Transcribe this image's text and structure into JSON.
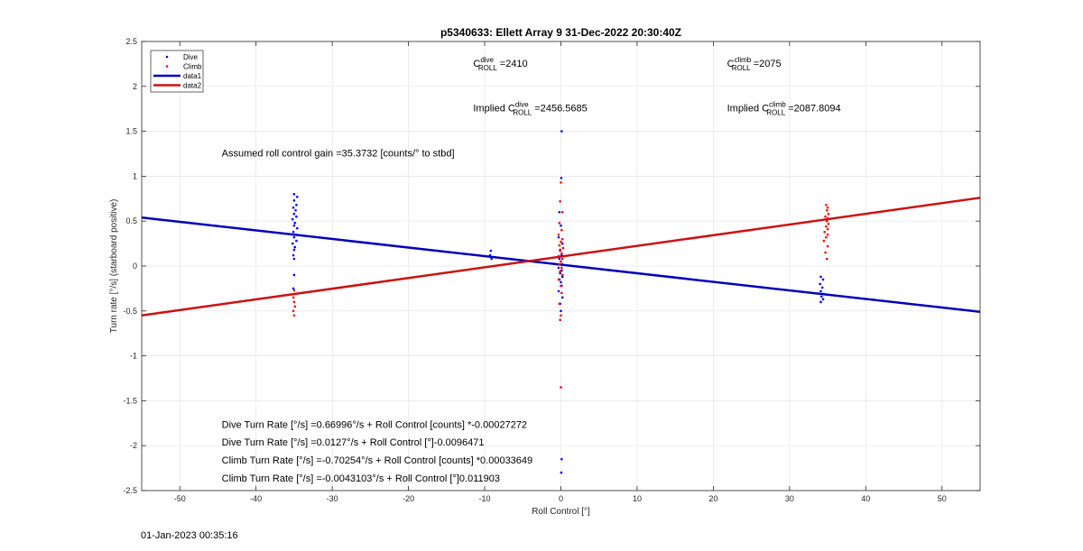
{
  "chart_data": {
    "type": "scatter",
    "title": "p5340633: Ellett Array 9 31-Dec-2022 20:30:40Z",
    "xlabel": "Roll Control [°]",
    "ylabel": "Turn rate [°/s] (starboard positive)",
    "xlim": [
      -55,
      55
    ],
    "ylim": [
      -2.5,
      2.5
    ],
    "xticks": [
      -50,
      -40,
      -30,
      -20,
      -10,
      0,
      10,
      20,
      30,
      40,
      50
    ],
    "yticks": [
      -2.5,
      -2,
      -1.5,
      -1,
      -0.5,
      0,
      0.5,
      1,
      1.5,
      2,
      2.5
    ],
    "grid": true,
    "legend_location": "top-left",
    "legend": [
      "Dive",
      "Climb",
      "data1",
      "data2"
    ],
    "colors": {
      "dive": "#0000ff",
      "climb": "#ff0000",
      "data1": "#0000bb",
      "data2": "#cc1111"
    },
    "series": [
      {
        "name": "Dive",
        "kind": "scatter",
        "points": [
          [
            -35,
            0.8
          ],
          [
            -34.6,
            0.77
          ],
          [
            -35,
            0.73
          ],
          [
            -34.7,
            0.68
          ],
          [
            -35.1,
            0.65
          ],
          [
            -34.8,
            0.62
          ],
          [
            -35,
            0.58
          ],
          [
            -34.7,
            0.55
          ],
          [
            -35.2,
            0.52
          ],
          [
            -34.9,
            0.48
          ],
          [
            -35,
            0.45
          ],
          [
            -34.6,
            0.42
          ],
          [
            -35.1,
            0.38
          ],
          [
            -34.8,
            0.35
          ],
          [
            -35,
            0.32
          ],
          [
            -34.7,
            0.28
          ],
          [
            -35.2,
            0.25
          ],
          [
            -34.9,
            0.21
          ],
          [
            -35,
            0.18
          ],
          [
            -35.1,
            0.12
          ],
          [
            -35,
            0.08
          ],
          [
            -35,
            -0.1
          ],
          [
            -35.1,
            -0.25
          ],
          [
            -9.2,
            0.17
          ],
          [
            -9.3,
            0.12
          ],
          [
            -9.1,
            0.08
          ],
          [
            0.1,
            1.5
          ],
          [
            0.05,
            0.98
          ],
          [
            -0.2,
            0.6
          ],
          [
            0,
            0.45
          ],
          [
            -0.3,
            0.32
          ],
          [
            0.2,
            0.25
          ],
          [
            -0.1,
            0.18
          ],
          [
            0.1,
            0.12
          ],
          [
            -0.2,
            0.08
          ],
          [
            0,
            0.05
          ],
          [
            0.2,
            0.02
          ],
          [
            -0.3,
            -0.02
          ],
          [
            0.1,
            -0.05
          ],
          [
            -0.1,
            -0.08
          ],
          [
            0.2,
            -0.12
          ],
          [
            -0.2,
            -0.15
          ],
          [
            0,
            -0.18
          ],
          [
            0.1,
            -0.22
          ],
          [
            -0.3,
            -0.28
          ],
          [
            0.2,
            -0.35
          ],
          [
            -0.1,
            -0.42
          ],
          [
            0,
            -0.5
          ],
          [
            0.1,
            -2.15
          ],
          [
            0.05,
            -2.3
          ],
          [
            34.1,
            -0.12
          ],
          [
            34.4,
            -0.15
          ],
          [
            34,
            -0.2
          ],
          [
            34.3,
            -0.24
          ],
          [
            34.1,
            -0.28
          ],
          [
            34.5,
            -0.31
          ],
          [
            34.2,
            -0.34
          ],
          [
            34.4,
            -0.37
          ],
          [
            34.1,
            -0.4
          ]
        ]
      },
      {
        "name": "Climb",
        "kind": "scatter",
        "points": [
          [
            -35,
            -0.27
          ],
          [
            -34.9,
            -0.31
          ],
          [
            -35.1,
            -0.35
          ],
          [
            -35,
            -0.4
          ],
          [
            -34.9,
            -0.45
          ],
          [
            -35.1,
            -0.5
          ],
          [
            -35,
            -0.55
          ],
          [
            0,
            0.93
          ],
          [
            -0.1,
            0.72
          ],
          [
            0.2,
            0.6
          ],
          [
            -0.2,
            0.48
          ],
          [
            0.1,
            0.4
          ],
          [
            -0.3,
            0.35
          ],
          [
            0.2,
            0.3
          ],
          [
            0,
            0.27
          ],
          [
            -0.2,
            0.23
          ],
          [
            0.3,
            0.2
          ],
          [
            -0.1,
            0.17
          ],
          [
            0.1,
            0.14
          ],
          [
            -0.3,
            0.11
          ],
          [
            0.2,
            0.08
          ],
          [
            0,
            0.05
          ],
          [
            -0.2,
            0.02
          ],
          [
            0.1,
            -0.02
          ],
          [
            -0.1,
            -0.06
          ],
          [
            0.2,
            -0.1
          ],
          [
            -0.3,
            -0.15
          ],
          [
            0,
            -0.22
          ],
          [
            0.1,
            -0.3
          ],
          [
            -0.2,
            -0.42
          ],
          [
            0,
            -0.55
          ],
          [
            -0.1,
            -0.6
          ],
          [
            0,
            -1.35
          ],
          [
            34.8,
            0.68
          ],
          [
            35,
            0.65
          ],
          [
            34.9,
            0.62
          ],
          [
            35.1,
            0.58
          ],
          [
            34.7,
            0.55
          ],
          [
            35,
            0.53
          ],
          [
            34.9,
            0.5
          ],
          [
            35.1,
            0.47
          ],
          [
            34.8,
            0.44
          ],
          [
            35,
            0.41
          ],
          [
            34.6,
            0.38
          ],
          [
            35,
            0.35
          ],
          [
            34.8,
            0.32
          ],
          [
            34.5,
            0.28
          ],
          [
            35,
            0.22
          ],
          [
            34.7,
            0.15
          ],
          [
            34.9,
            0.08
          ]
        ]
      },
      {
        "name": "data1",
        "kind": "line",
        "points": [
          [
            -55,
            0.54
          ],
          [
            55,
            -0.51
          ]
        ]
      },
      {
        "name": "data2",
        "kind": "line",
        "points": [
          [
            -55,
            -0.55
          ],
          [
            55,
            0.76
          ]
        ]
      }
    ],
    "annotations": [
      {
        "prefix": "C",
        "sup": "dive",
        "sub": "ROLL",
        "suffix": " =2410",
        "x": -11.5,
        "y": 2.22
      },
      {
        "prefix": "C",
        "sup": "climb",
        "sub": "ROLL",
        "suffix": " =2075",
        "x": 21.8,
        "y": 2.22
      },
      {
        "prefix": "Implied C",
        "sup": "dive",
        "sub": "ROLL",
        "suffix": " =2456.5685",
        "x": -11.5,
        "y": 1.72
      },
      {
        "prefix": "Implied C",
        "sup": "climb",
        "sub": "ROLL",
        "suffix": " =2087.8094",
        "x": 21.8,
        "y": 1.72
      },
      {
        "text": "Assumed roll control gain =35.3732 [counts/° to stbd]",
        "x": -44.5,
        "y": 1.22
      },
      {
        "text": "Dive Turn Rate [°/s] =0.66996°/s + Roll Control [counts] *-0.00027272",
        "x": -44.5,
        "y": -1.8
      },
      {
        "text": "Dive Turn Rate [°/s] =0.0127°/s + Roll Control [°]-0.0096471",
        "x": -44.5,
        "y": -2.0
      },
      {
        "text": "Climb Turn Rate [°/s] =-0.70254°/s + Roll Control [counts] *0.00033649",
        "x": -44.5,
        "y": -2.2
      },
      {
        "text": "Climb Turn Rate [°/s] =-0.0043103°/s + Roll Control [°]0.011903",
        "x": -44.5,
        "y": -2.4
      }
    ]
  },
  "footer": {
    "timestamp": "01-Jan-2023 00:35:16"
  }
}
